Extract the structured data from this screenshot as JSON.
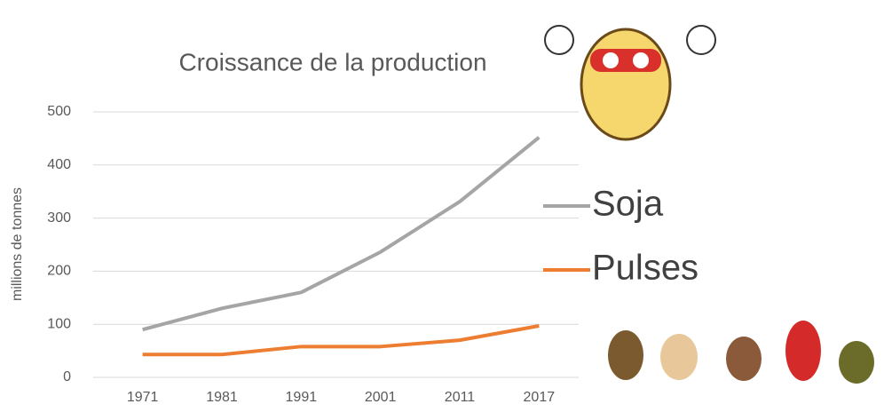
{
  "chart_data": {
    "type": "line",
    "title": "Croissance de la production",
    "y_label": "millions de tonnes",
    "categories": [
      "1971",
      "1981",
      "1991",
      "2001",
      "2011",
      "2017"
    ],
    "series": [
      {
        "name": "Soja",
        "color": "#a5a5a5",
        "values": [
          90,
          130,
          160,
          236,
          331,
          452
        ]
      },
      {
        "name": "Pulses",
        "color": "#ed7d31",
        "values": [
          43,
          43,
          58,
          58,
          70,
          97
        ]
      }
    ],
    "ylim": [
      0,
      500
    ],
    "yticks": [
      0,
      100,
      200,
      300,
      400,
      500
    ],
    "grid": true,
    "legend": "right"
  }
}
